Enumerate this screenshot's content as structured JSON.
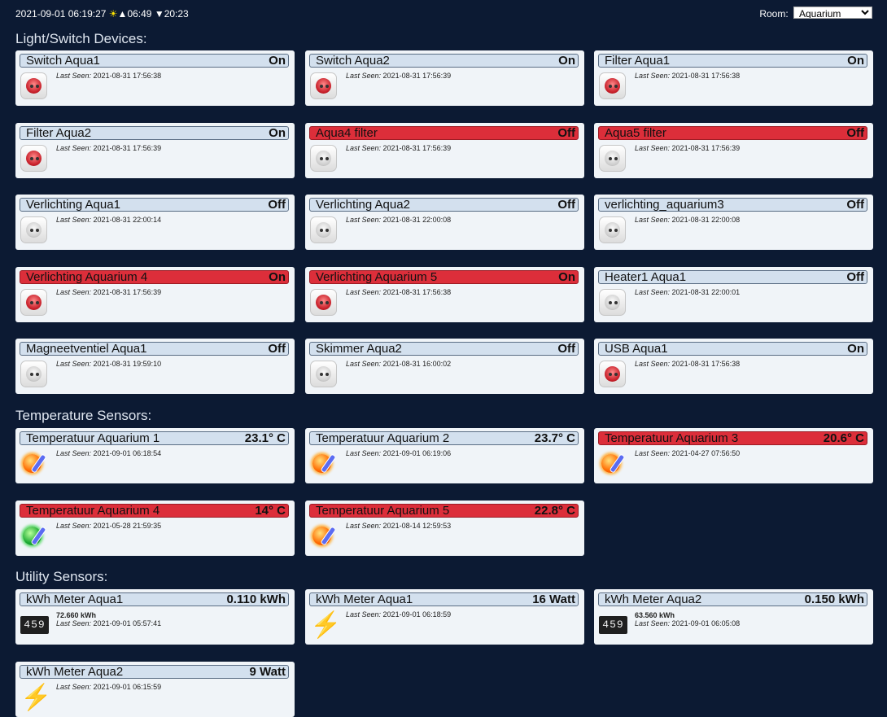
{
  "header": {
    "datetime": "2021-09-01 06:19:27",
    "sunrise_glyph": "☀",
    "up_glyph": "▲",
    "sunrise": "06:49",
    "down_glyph": "▼",
    "sunset": "20:23",
    "room_label": "Room:",
    "room_selected": "Aquarium"
  },
  "labels": {
    "last_seen": "Last Seen:"
  },
  "colors": {
    "background": "#0c1a33",
    "bar": "#d3e0ee",
    "alert_bar": "#dc2e3a"
  },
  "sections": [
    {
      "title": "Light/Switch Devices:",
      "devices": [
        {
          "name": "Switch Aqua1",
          "status": "On",
          "last_seen": "2021-08-31 17:56:38",
          "alert": false,
          "icon": "socket-on"
        },
        {
          "name": "Switch Aqua2",
          "status": "On",
          "last_seen": "2021-08-31 17:56:39",
          "alert": false,
          "icon": "socket-on"
        },
        {
          "name": "Filter Aqua1",
          "status": "On",
          "last_seen": "2021-08-31 17:56:38",
          "alert": false,
          "icon": "socket-on"
        },
        {
          "name": "Filter Aqua2",
          "status": "On",
          "last_seen": "2021-08-31 17:56:39",
          "alert": false,
          "icon": "socket-on"
        },
        {
          "name": "Aqua4 filter",
          "status": "Off",
          "last_seen": "2021-08-31 17:56:39",
          "alert": true,
          "icon": "socket-off"
        },
        {
          "name": "Aqua5 filter",
          "status": "Off",
          "last_seen": "2021-08-31 17:56:39",
          "alert": true,
          "icon": "socket-off"
        },
        {
          "name": "Verlichting Aqua1",
          "status": "Off",
          "last_seen": "2021-08-31 22:00:14",
          "alert": false,
          "icon": "socket-off"
        },
        {
          "name": "Verlichting Aqua2",
          "status": "Off",
          "last_seen": "2021-08-31 22:00:08",
          "alert": false,
          "icon": "socket-off"
        },
        {
          "name": "verlichting_aquarium3",
          "status": "Off",
          "last_seen": "2021-08-31 22:00:08",
          "alert": false,
          "icon": "socket-off"
        },
        {
          "name": "Verlichting Aquarium 4",
          "status": "On",
          "last_seen": "2021-08-31 17:56:39",
          "alert": true,
          "icon": "socket-on"
        },
        {
          "name": "Verlichting Aquarium 5",
          "status": "On",
          "last_seen": "2021-08-31 17:56:38",
          "alert": true,
          "icon": "socket-on"
        },
        {
          "name": "Heater1 Aqua1",
          "status": "Off",
          "last_seen": "2021-08-31 22:00:01",
          "alert": false,
          "icon": "socket-off"
        },
        {
          "name": "Magneetventiel Aqua1",
          "status": "Off",
          "last_seen": "2021-08-31 19:59:10",
          "alert": false,
          "icon": "socket-off"
        },
        {
          "name": "Skimmer Aqua2",
          "status": "Off",
          "last_seen": "2021-08-31 16:00:02",
          "alert": false,
          "icon": "socket-off"
        },
        {
          "name": "USB Aqua1",
          "status": "On",
          "last_seen": "2021-08-31 17:56:38",
          "alert": false,
          "icon": "socket-on"
        }
      ]
    },
    {
      "title": "Temperature Sensors:",
      "devices": [
        {
          "name": "Temperatuur Aquarium 1",
          "status": "23.1° C",
          "last_seen": "2021-09-01 06:18:54",
          "alert": false,
          "icon": "thermo-orange"
        },
        {
          "name": "Temperatuur Aquarium 2",
          "status": "23.7° C",
          "last_seen": "2021-09-01 06:19:06",
          "alert": false,
          "icon": "thermo-orange"
        },
        {
          "name": "Temperatuur Aquarium 3",
          "status": "20.6° C",
          "last_seen": "2021-04-27 07:56:50",
          "alert": true,
          "icon": "thermo-orange"
        },
        {
          "name": "Temperatuur Aquarium 4",
          "status": "14° C",
          "last_seen": "2021-05-28 21:59:35",
          "alert": true,
          "icon": "thermo-green"
        },
        {
          "name": "Temperatuur Aquarium 5",
          "status": "22.8° C",
          "last_seen": "2021-08-14 12:59:53",
          "alert": true,
          "icon": "thermo-orange"
        }
      ]
    },
    {
      "title": "Utility Sensors:",
      "devices": [
        {
          "name": "kWh Meter Aqua1",
          "status": "0.110 kWh",
          "extra": "72.660 kWh",
          "last_seen": "2021-09-01 05:57:41",
          "alert": false,
          "icon": "counter",
          "counter_text": "459"
        },
        {
          "name": "kWh Meter Aqua1",
          "status": "16 Watt",
          "last_seen": "2021-09-01 06:18:59",
          "alert": false,
          "icon": "bolt"
        },
        {
          "name": "kWh Meter Aqua2",
          "status": "0.150 kWh",
          "extra": "63.560 kWh",
          "last_seen": "2021-09-01 06:05:08",
          "alert": false,
          "icon": "counter",
          "counter_text": "459"
        },
        {
          "name": "kWh Meter Aqua2",
          "status": "9 Watt",
          "last_seen": "2021-09-01 06:15:59",
          "alert": false,
          "icon": "bolt"
        }
      ]
    }
  ]
}
